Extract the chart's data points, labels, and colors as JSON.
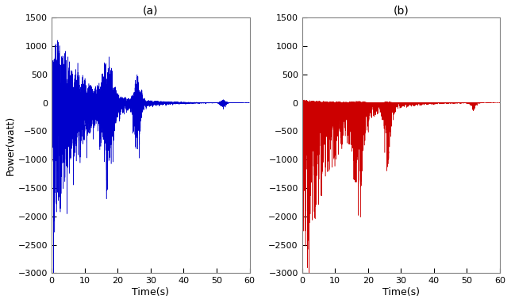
{
  "title_a": "(a)",
  "title_b": "(b)",
  "xlabel": "Time(s)",
  "ylabel": "Power(watt)",
  "xlim": [
    0,
    60
  ],
  "ylim": [
    -3000,
    1500
  ],
  "yticks": [
    -3000,
    -2500,
    -2000,
    -1500,
    -1000,
    -500,
    0,
    500,
    1000,
    1500
  ],
  "xticks": [
    0,
    10,
    20,
    30,
    40,
    50,
    60
  ],
  "color_a": "#0000cc",
  "color_b": "#cc0000",
  "background_color": "#ffffff",
  "linewidth": 0.35,
  "duration": 60,
  "sample_rate": 500,
  "seed": 7
}
